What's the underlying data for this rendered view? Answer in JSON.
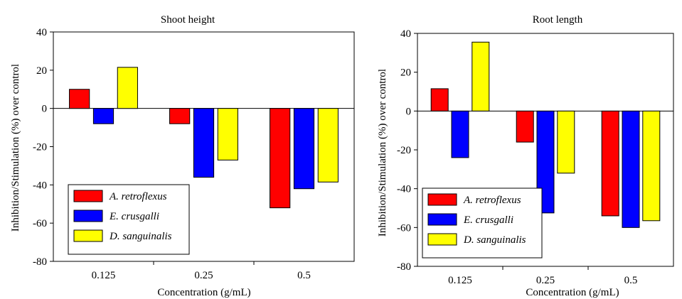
{
  "colors": {
    "series_1": "#ff0000",
    "series_2": "#0000ff",
    "series_3": "#ffff00",
    "frame": "#000000"
  },
  "chart_data": [
    {
      "type": "bar",
      "title": "Shoot height",
      "xlabel": "Concentration (g/mL)",
      "ylabel": "Inhibition/Stimulation (%) over control",
      "categories": [
        "0.125",
        "0.25",
        "0.5"
      ],
      "ylim": [
        -80,
        40
      ],
      "yticks": [
        -80,
        -60,
        -40,
        -20,
        0,
        20,
        40
      ],
      "ytick_labels": [
        "-80",
        "-60",
        "-40",
        "-20",
        "0",
        "20",
        "40"
      ],
      "legend_position": "lower-left",
      "series": [
        {
          "name": "A. retroflexus",
          "values": [
            10,
            -8,
            -52
          ]
        },
        {
          "name": "E. crusgalli",
          "values": [
            -8,
            -36,
            -42
          ]
        },
        {
          "name": "D. sanguinalis",
          "values": [
            21.5,
            -27,
            -38.5
          ]
        }
      ]
    },
    {
      "type": "bar",
      "title": "Root length",
      "xlabel": "Concentration (g/mL)",
      "ylabel": "Inhibition/Stimulation (%) over control",
      "categories": [
        "0.125",
        "0.25",
        "0.5"
      ],
      "ylim": [
        -80,
        40
      ],
      "yticks": [
        -80,
        -60,
        -40,
        -20,
        0,
        20,
        40
      ],
      "ytick_labels": [
        "-80",
        "-60",
        "-40",
        "-20",
        "0",
        "20",
        "40"
      ],
      "legend_position": "lower-left",
      "series": [
        {
          "name": "A. retroflexus",
          "values": [
            11.5,
            -16,
            -54
          ]
        },
        {
          "name": "E. crusgalli",
          "values": [
            -24,
            -52.5,
            -60
          ]
        },
        {
          "name": "D. sanguinalis",
          "values": [
            35.5,
            -32,
            -56.5
          ]
        }
      ]
    }
  ]
}
